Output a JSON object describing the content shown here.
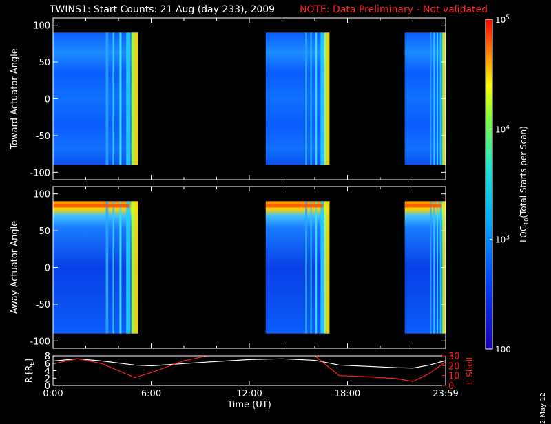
{
  "title": "TWINS1: Start Counts: 21 Aug (day 233), 2009",
  "note": "NOTE: Data Preliminary - Not validated",
  "date_stamp": "2 May 12",
  "colors": {
    "background": "#000000",
    "axes": "#ffffff",
    "note": "#ff2020",
    "r_line": "#ffffff",
    "lshell_line": "#ff2020"
  },
  "chart_data": [
    {
      "type": "heatmap",
      "panel": "toward",
      "ylabel": "Toward Actuator Angle",
      "ylim": [
        -110,
        110
      ],
      "yticks": [
        100,
        50,
        0,
        -50,
        -100
      ],
      "xlim_hours": [
        0,
        24
      ],
      "data_angle_range": [
        -90,
        90
      ],
      "segments_hours": [
        [
          0,
          5.2
        ],
        [
          13.0,
          16.9
        ],
        [
          21.5,
          24.0
        ]
      ],
      "colorscale": "log",
      "grid": false
    },
    {
      "type": "heatmap",
      "panel": "away",
      "ylabel": "Away Actuator Angle",
      "ylim": [
        -110,
        110
      ],
      "yticks": [
        100,
        50,
        0,
        -50,
        -100
      ],
      "xlim_hours": [
        0,
        24
      ],
      "data_angle_range": [
        -90,
        90
      ],
      "segments_hours": [
        [
          0,
          5.2
        ],
        [
          13.0,
          16.9
        ],
        [
          21.5,
          24.0
        ]
      ],
      "colorscale": "log",
      "grid": false
    },
    {
      "type": "line",
      "panel": "orbit",
      "xlabel": "Time (UT)",
      "xticks": [
        "0:00",
        "6:00",
        "12:00",
        "18:00",
        "23:59"
      ],
      "xtick_hours": [
        0,
        6,
        12,
        18,
        24
      ],
      "ylabel_left": "R [RE]",
      "ylim_left": [
        0,
        8
      ],
      "yticks_left": [
        "8",
        "6",
        "4",
        "2",
        "0"
      ],
      "ylabel_right": "L Shell",
      "ylim_right": [
        0,
        30
      ],
      "yticks_right": [
        "30",
        "20",
        "10",
        "0"
      ],
      "series": [
        {
          "name": "R [RE]",
          "axis": "left",
          "x": [
            0,
            1.5,
            3,
            5,
            6,
            9,
            12,
            14,
            16,
            17.5,
            19,
            21,
            22,
            23,
            24
          ],
          "y": [
            6.6,
            7.2,
            6.6,
            5.5,
            5.3,
            6.2,
            7.0,
            7.2,
            6.8,
            5.5,
            5.2,
            4.8,
            4.7,
            5.5,
            6.7
          ]
        },
        {
          "name": "L Shell",
          "axis": "right",
          "x": [
            0,
            1.5,
            3,
            5,
            6,
            8,
            10,
            10.3,
            15.5,
            16,
            17.5,
            19,
            21,
            22,
            23,
            24
          ],
          "y": [
            22,
            27,
            22,
            8,
            13,
            25,
            32,
            35,
            35,
            30,
            10,
            9,
            7,
            4,
            12,
            24
          ]
        }
      ]
    },
    {
      "type": "heatmap",
      "panel": "colorbar",
      "ylabel": "LOG10(Total Starts per Scan)",
      "range": [
        100,
        100000
      ],
      "tick_labels": [
        "10^5",
        "10^4",
        "10^3",
        "100"
      ],
      "tick_values": [
        100000,
        10000,
        1000,
        100
      ]
    }
  ]
}
